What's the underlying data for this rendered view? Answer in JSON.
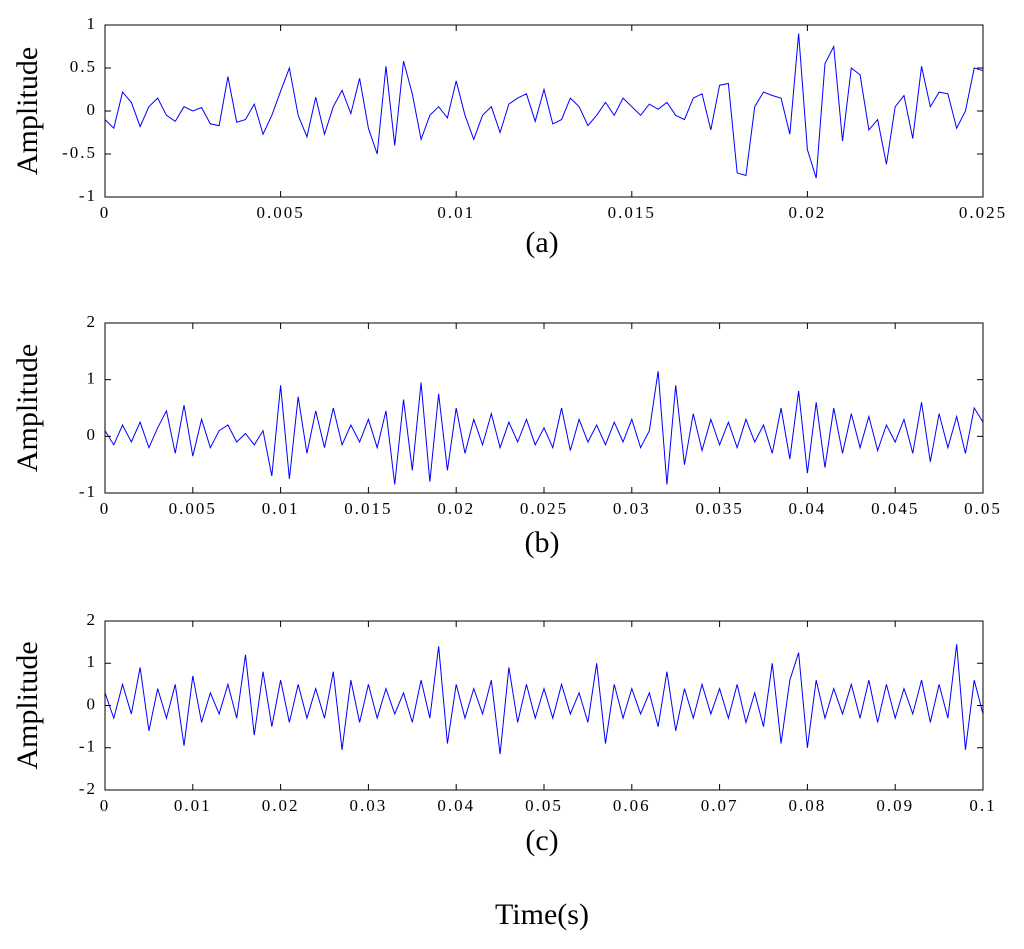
{
  "chart_data": [
    {
      "type": "line",
      "ylabel": "Amplitude",
      "caption": "(a)",
      "xlim": [
        0,
        0.025
      ],
      "ylim": [
        -1,
        1
      ],
      "xticks": [
        0,
        0.005,
        0.01,
        0.015,
        0.02,
        0.025
      ],
      "yticks": [
        -1,
        -0.5,
        0,
        0.5,
        1
      ],
      "x": [
        0,
        0.00025,
        0.0005,
        0.00075,
        0.001,
        0.00125,
        0.0015,
        0.00175,
        0.002,
        0.00225,
        0.0025,
        0.00275,
        0.003,
        0.00325,
        0.0035,
        0.00375,
        0.004,
        0.00425,
        0.0045,
        0.00475,
        0.005,
        0.00525,
        0.0055,
        0.00575,
        0.006,
        0.00625,
        0.0065,
        0.00675,
        0.007,
        0.00725,
        0.0075,
        0.00775,
        0.008,
        0.00825,
        0.0085,
        0.00875,
        0.009,
        0.00925,
        0.0095,
        0.00975,
        0.01,
        0.01025,
        0.0105,
        0.01075,
        0.011,
        0.01125,
        0.0115,
        0.01175,
        0.012,
        0.01225,
        0.0125,
        0.01275,
        0.013,
        0.01325,
        0.0135,
        0.01375,
        0.014,
        0.01425,
        0.0145,
        0.01475,
        0.015,
        0.01525,
        0.0155,
        0.01575,
        0.016,
        0.01625,
        0.0165,
        0.01675,
        0.017,
        0.01725,
        0.0175,
        0.01775,
        0.018,
        0.01825,
        0.0185,
        0.01875,
        0.019,
        0.01925,
        0.0195,
        0.01975,
        0.02,
        0.02025,
        0.0205,
        0.02075,
        0.021,
        0.02125,
        0.0215,
        0.02175,
        0.022,
        0.02225,
        0.0225,
        0.02275,
        0.023,
        0.02325,
        0.0235,
        0.02375,
        0.024,
        0.02425,
        0.0245,
        0.02475,
        0.025
      ],
      "series": [
        {
          "color": "#0000ff",
          "values": [
            -0.1,
            -0.2,
            0.22,
            0.1,
            -0.18,
            0.05,
            0.15,
            -0.05,
            -0.12,
            0.05,
            0.0,
            0.04,
            -0.15,
            -0.17,
            0.4,
            -0.13,
            -0.1,
            0.08,
            -0.27,
            -0.05,
            0.23,
            0.5,
            -0.05,
            -0.3,
            0.16,
            -0.27,
            0.05,
            0.24,
            -0.03,
            0.38,
            -0.2,
            -0.5,
            0.52,
            -0.4,
            0.58,
            0.2,
            -0.33,
            -0.05,
            0.05,
            -0.08,
            0.35,
            -0.05,
            -0.33,
            -0.05,
            0.05,
            -0.25,
            0.08,
            0.15,
            0.2,
            -0.12,
            0.25,
            -0.15,
            -0.1,
            0.15,
            0.05,
            -0.17,
            -0.05,
            0.1,
            -0.05,
            0.15,
            0.05,
            -0.05,
            0.08,
            0.02,
            0.1,
            -0.05,
            -0.1,
            0.15,
            0.2,
            -0.22,
            0.3,
            0.32,
            -0.72,
            -0.75,
            0.05,
            0.22,
            0.18,
            0.15,
            -0.27,
            0.9,
            -0.45,
            -0.78,
            0.55,
            0.75,
            -0.35,
            0.5,
            0.42,
            -0.22,
            -0.1,
            -0.62,
            0.05,
            0.18,
            -0.32,
            0.52,
            0.05,
            0.22,
            0.2,
            -0.2,
            0.0,
            0.5,
            0.47
          ]
        }
      ]
    },
    {
      "type": "line",
      "ylabel": "Amplitude",
      "caption": "(b)",
      "xlim": [
        0,
        0.05
      ],
      "ylim": [
        -1,
        2
      ],
      "xticks": [
        0,
        0.005,
        0.01,
        0.015,
        0.02,
        0.025,
        0.03,
        0.035,
        0.04,
        0.045,
        0.05
      ],
      "yticks": [
        -1,
        0,
        1,
        2
      ],
      "x": [
        0,
        0.0005,
        0.001,
        0.0015,
        0.002,
        0.0025,
        0.003,
        0.0035,
        0.004,
        0.0045,
        0.005,
        0.0055,
        0.006,
        0.0065,
        0.007,
        0.0075,
        0.008,
        0.0085,
        0.009,
        0.0095,
        0.01,
        0.0105,
        0.011,
        0.0115,
        0.012,
        0.0125,
        0.013,
        0.0135,
        0.014,
        0.0145,
        0.015,
        0.0155,
        0.016,
        0.0165,
        0.017,
        0.0175,
        0.018,
        0.0185,
        0.019,
        0.0195,
        0.02,
        0.0205,
        0.021,
        0.0215,
        0.022,
        0.0225,
        0.023,
        0.0235,
        0.024,
        0.0245,
        0.025,
        0.0255,
        0.026,
        0.0265,
        0.027,
        0.0275,
        0.028,
        0.0285,
        0.029,
        0.0295,
        0.03,
        0.0305,
        0.031,
        0.0315,
        0.032,
        0.0325,
        0.033,
        0.0335,
        0.034,
        0.0345,
        0.035,
        0.0355,
        0.036,
        0.0365,
        0.037,
        0.0375,
        0.038,
        0.0385,
        0.039,
        0.0395,
        0.04,
        0.0405,
        0.041,
        0.0415,
        0.042,
        0.0425,
        0.043,
        0.0435,
        0.044,
        0.0445,
        0.045,
        0.0455,
        0.046,
        0.0465,
        0.047,
        0.0475,
        0.048,
        0.0485,
        0.049,
        0.0495,
        0.05
      ],
      "series": [
        {
          "color": "#0000ff",
          "values": [
            0.1,
            -0.15,
            0.2,
            -0.1,
            0.25,
            -0.2,
            0.15,
            0.45,
            -0.3,
            0.55,
            -0.35,
            0.3,
            -0.2,
            0.1,
            0.2,
            -0.1,
            0.05,
            -0.15,
            0.1,
            -0.7,
            0.9,
            -0.75,
            0.7,
            -0.3,
            0.45,
            -0.2,
            0.5,
            -0.15,
            0.2,
            -0.1,
            0.3,
            -0.2,
            0.45,
            -0.85,
            0.65,
            -0.6,
            0.95,
            -0.8,
            0.75,
            -0.6,
            0.5,
            -0.3,
            0.3,
            -0.15,
            0.4,
            -0.2,
            0.25,
            -0.1,
            0.3,
            -0.15,
            0.15,
            -0.2,
            0.5,
            -0.25,
            0.3,
            -0.1,
            0.2,
            -0.15,
            0.25,
            -0.1,
            0.3,
            -0.2,
            0.1,
            1.15,
            -0.85,
            0.9,
            -0.5,
            0.4,
            -0.25,
            0.3,
            -0.15,
            0.25,
            -0.2,
            0.3,
            -0.1,
            0.2,
            -0.3,
            0.5,
            -0.4,
            0.8,
            -0.65,
            0.6,
            -0.55,
            0.5,
            -0.3,
            0.4,
            -0.2,
            0.35,
            -0.25,
            0.2,
            -0.1,
            0.3,
            -0.3,
            0.6,
            -0.45,
            0.4,
            -0.2,
            0.35,
            -0.3,
            0.5,
            0.25
          ]
        }
      ]
    },
    {
      "type": "line",
      "ylabel": "Amplitude",
      "caption": "(c)",
      "xlabel": "Time(s)",
      "xlim": [
        0,
        0.1
      ],
      "ylim": [
        -2,
        2
      ],
      "xticks": [
        0,
        0.01,
        0.02,
        0.03,
        0.04,
        0.05,
        0.06,
        0.07,
        0.08,
        0.09,
        0.1
      ],
      "yticks": [
        -2,
        -1,
        0,
        1,
        2
      ],
      "x": [
        0,
        0.001,
        0.002,
        0.003,
        0.004,
        0.005,
        0.006,
        0.007,
        0.008,
        0.009,
        0.01,
        0.011,
        0.012,
        0.013,
        0.014,
        0.015,
        0.016,
        0.017,
        0.018,
        0.019,
        0.02,
        0.021,
        0.022,
        0.023,
        0.024,
        0.025,
        0.026,
        0.027,
        0.028,
        0.029,
        0.03,
        0.031,
        0.032,
        0.033,
        0.034,
        0.035,
        0.036,
        0.037,
        0.038,
        0.039,
        0.04,
        0.041,
        0.042,
        0.043,
        0.044,
        0.045,
        0.046,
        0.047,
        0.048,
        0.049,
        0.05,
        0.051,
        0.052,
        0.053,
        0.054,
        0.055,
        0.056,
        0.057,
        0.058,
        0.059,
        0.06,
        0.061,
        0.062,
        0.063,
        0.064,
        0.065,
        0.066,
        0.067,
        0.068,
        0.069,
        0.07,
        0.071,
        0.072,
        0.073,
        0.074,
        0.075,
        0.076,
        0.077,
        0.078,
        0.079,
        0.08,
        0.081,
        0.082,
        0.083,
        0.084,
        0.085,
        0.086,
        0.087,
        0.088,
        0.089,
        0.09,
        0.091,
        0.092,
        0.093,
        0.094,
        0.095,
        0.096,
        0.097,
        0.098,
        0.099,
        0.1
      ],
      "series": [
        {
          "color": "#0000ff",
          "values": [
            0.3,
            -0.3,
            0.5,
            -0.2,
            0.9,
            -0.6,
            0.4,
            -0.3,
            0.5,
            -0.95,
            0.7,
            -0.4,
            0.3,
            -0.2,
            0.5,
            -0.3,
            1.2,
            -0.7,
            0.8,
            -0.5,
            0.6,
            -0.4,
            0.5,
            -0.3,
            0.4,
            -0.3,
            0.8,
            -1.05,
            0.6,
            -0.4,
            0.5,
            -0.3,
            0.4,
            -0.2,
            0.3,
            -0.4,
            0.6,
            -0.3,
            1.4,
            -0.9,
            0.5,
            -0.3,
            0.4,
            -0.2,
            0.6,
            -1.15,
            0.9,
            -0.4,
            0.5,
            -0.3,
            0.4,
            -0.3,
            0.5,
            -0.2,
            0.3,
            -0.4,
            1.0,
            -0.9,
            0.5,
            -0.3,
            0.4,
            -0.2,
            0.3,
            -0.5,
            0.8,
            -0.6,
            0.4,
            -0.3,
            0.5,
            -0.2,
            0.4,
            -0.3,
            0.5,
            -0.4,
            0.3,
            -0.5,
            1.0,
            -0.9,
            0.6,
            1.25,
            -1.0,
            0.6,
            -0.3,
            0.4,
            -0.2,
            0.5,
            -0.3,
            0.6,
            -0.4,
            0.5,
            -0.3,
            0.4,
            -0.2,
            0.6,
            -0.4,
            0.5,
            -0.3,
            1.45,
            -1.05,
            0.6,
            -0.2
          ]
        }
      ]
    }
  ]
}
